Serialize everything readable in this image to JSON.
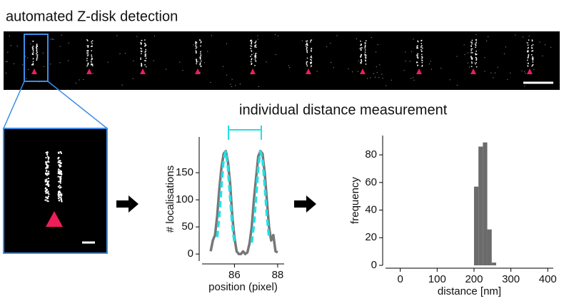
{
  "header": {
    "title": "automated Z-disk detection",
    "subtitle": "individual distance measurement"
  },
  "chart_data": [
    {
      "type": "line",
      "xlabel": "position (pixel)",
      "ylabel": "# localisations",
      "x": [
        84.9,
        85.0,
        85.1,
        85.2,
        85.3,
        85.4,
        85.5,
        85.6,
        85.7,
        85.8,
        85.9,
        86.0,
        86.1,
        86.2,
        86.3,
        86.4,
        86.5,
        86.6,
        86.7,
        86.8,
        86.9,
        87.0,
        87.1,
        87.2,
        87.3,
        87.4,
        87.5,
        87.6,
        87.7,
        87.8,
        87.9,
        88.0
      ],
      "series": [
        {
          "color": "#777777",
          "values": [
            5,
            25,
            35,
            70,
            120,
            160,
            185,
            190,
            170,
            130,
            70,
            30,
            5,
            0,
            0,
            5,
            0,
            3,
            20,
            50,
            100,
            140,
            180,
            190,
            185,
            150,
            100,
            50,
            25,
            35,
            5,
            3
          ]
        },
        {
          "color": "#22e0e8",
          "dashed": true,
          "values": [
            null,
            null,
            null,
            31,
            71,
            127,
            175,
            189,
            159,
            104,
            53,
            21,
            null,
            null,
            null,
            null,
            null,
            null,
            null,
            21,
            53,
            104,
            159,
            189,
            175,
            127,
            71,
            31,
            null,
            null,
            null,
            null
          ]
        }
      ],
      "xlim": [
        84.5,
        88.3
      ],
      "xticks": [
        86,
        88
      ],
      "ylim": [
        -13,
        216
      ],
      "yticks": [
        0,
        50,
        100,
        150
      ]
    },
    {
      "type": "histogram",
      "xlabel": "distance [nm]",
      "ylabel": "frequency",
      "bins": [
        200,
        212,
        224,
        236,
        248,
        260
      ],
      "values": [
        57,
        86,
        89,
        26,
        2
      ],
      "color": "#6b6b6b",
      "xlim": [
        -40,
        415
      ],
      "xticks": [
        0,
        100,
        200,
        300,
        400
      ],
      "ylim": [
        0,
        94
      ],
      "yticks": [
        0,
        20,
        40,
        60,
        80
      ]
    }
  ]
}
